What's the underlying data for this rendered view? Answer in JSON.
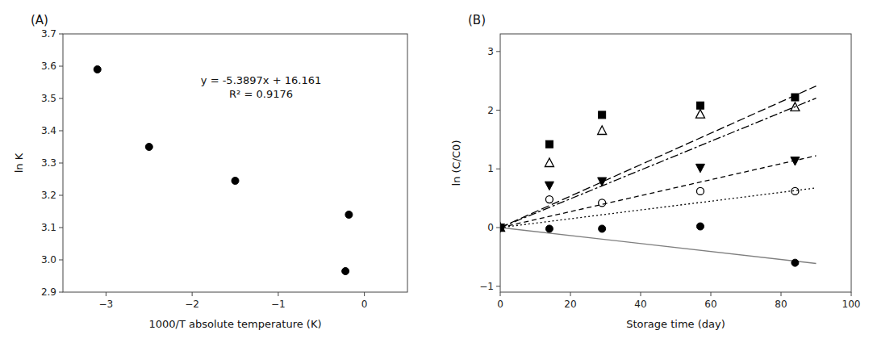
{
  "chart_data": [
    {
      "type": "scatter",
      "title": "(A)",
      "x_label": "1000/T absolute temperature (K)",
      "y_label": "ln K",
      "xlim": [
        -3.5,
        0.5
      ],
      "ylim": [
        2.9,
        3.7
      ],
      "xticks": [
        {
          "value": -3,
          "label": "−3"
        },
        {
          "value": -2,
          "label": "−2"
        },
        {
          "value": -1,
          "label": "−1"
        },
        0
      ],
      "yticks": [
        2.9,
        {
          "value": 3.0,
          "label": "3.0"
        },
        3.1,
        3.2,
        3.3,
        3.4,
        3.5,
        3.6,
        3.7
      ],
      "grid": false,
      "x": [
        -3.1,
        -2.5,
        -1.5,
        -0.18,
        -0.22
      ],
      "series": [
        {
          "marker": "circle",
          "color": "black",
          "values": [
            3.59,
            3.35,
            3.245,
            3.14,
            2.965
          ]
        }
      ],
      "annotation": {
        "x": -1.2,
        "y": 3.535,
        "lines": [
          "y = -5.3897x + 16.161",
          "R² = 0.9176"
        ]
      }
    },
    {
      "type": "scatter",
      "title": "(B)",
      "x_label": "Storage time (day)",
      "y_label": "ln (C/C0)",
      "xlim": [
        0,
        100
      ],
      "ylim": [
        -1.1,
        3.3
      ],
      "xticks": [
        0,
        20,
        40,
        60,
        80,
        100
      ],
      "yticks": [
        {
          "value": -1,
          "label": "−1"
        },
        0,
        1,
        2,
        3
      ],
      "grid": false,
      "x": [
        0,
        14,
        29,
        57,
        84
      ],
      "fit_x": [
        0,
        90
      ],
      "series": [
        {
          "marker": "square",
          "line_style": "long-dashed",
          "color": "black",
          "values": [
            0.0,
            1.42,
            1.92,
            2.08,
            2.22
          ],
          "fit_values": [
            0,
            2.412
          ]
        },
        {
          "marker": "triangle-up-open",
          "line_style": "dash-dot",
          "color": "black",
          "values": [
            0.0,
            1.1,
            1.65,
            1.93,
            2.05
          ],
          "fit_values": [
            0,
            2.205
          ]
        },
        {
          "marker": "triangle-down",
          "line_style": "dashed",
          "color": "black",
          "values": [
            0.0,
            0.72,
            0.79,
            1.02,
            1.14
          ],
          "fit_values": [
            0,
            1.224
          ]
        },
        {
          "marker": "circle-open",
          "line_style": "dotted",
          "color": "black",
          "values": [
            0.0,
            0.48,
            0.42,
            0.62,
            0.62
          ],
          "fit_values": [
            0,
            0.675
          ]
        },
        {
          "marker": "circle",
          "line_style": "solid",
          "color": "black",
          "values": [
            0.0,
            -0.02,
            -0.02,
            0.02,
            -0.6
          ],
          "fit_values": [
            0,
            -0.612
          ]
        }
      ]
    }
  ]
}
